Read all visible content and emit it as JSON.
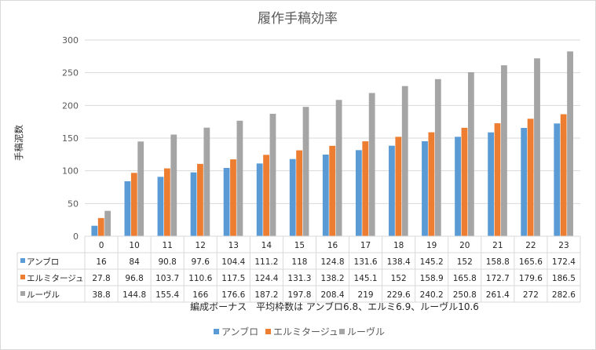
{
  "chart_data": {
    "type": "bar",
    "title": "履作手稿効率",
    "ylabel": "手稿泥数",
    "xlabel": "編成ボーナス　平均枠数は アンブロ6.8、エルミ6.9、ルーヴル10.6",
    "ylim": [
      0,
      300
    ],
    "yticks": [
      0,
      50,
      100,
      150,
      200,
      250,
      300
    ],
    "grid": true,
    "legend": "bottom",
    "categories": [
      "0",
      "10",
      "11",
      "12",
      "13",
      "14",
      "15",
      "16",
      "17",
      "18",
      "19",
      "20",
      "21",
      "22",
      "23"
    ],
    "series": [
      {
        "name": "アンブロ",
        "color": "#5b9bd5",
        "values": [
          16,
          84,
          90.8,
          97.6,
          104.4,
          111.2,
          118,
          124.8,
          131.6,
          138.4,
          145.2,
          152,
          158.8,
          165.6,
          172.4
        ]
      },
      {
        "name": "エルミタージュ",
        "color": "#ed7d31",
        "values": [
          27.8,
          96.8,
          103.7,
          110.6,
          117.5,
          124.4,
          131.3,
          138.2,
          145.1,
          152,
          158.9,
          165.8,
          172.7,
          179.6,
          186.5
        ]
      },
      {
        "name": "ルーヴル",
        "color": "#a5a5a5",
        "values": [
          38.8,
          144.8,
          155.4,
          166,
          176.6,
          187.2,
          197.8,
          208.4,
          219,
          229.6,
          240.2,
          250.8,
          261.4,
          272,
          282.6
        ]
      }
    ]
  }
}
